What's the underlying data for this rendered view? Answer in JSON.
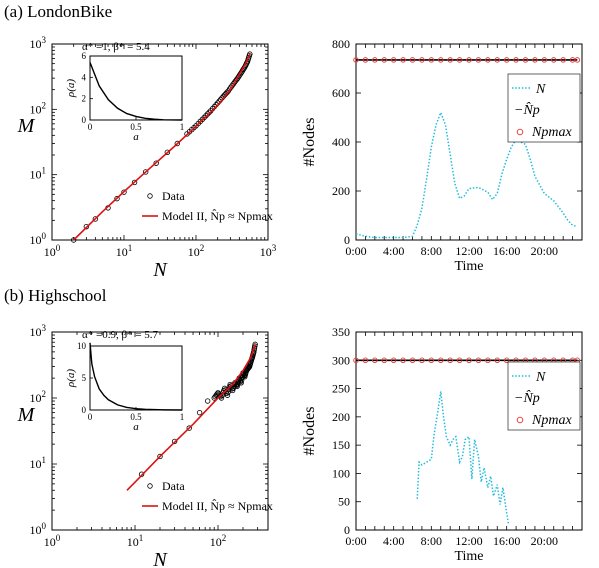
{
  "panels": [
    {
      "title": "(a) LondonBike",
      "scatter": {
        "ylabel": "M",
        "xlabel": "N",
        "x_ticks": [
          "10^0",
          "10^1",
          "10^2",
          "10^3"
        ],
        "y_ticks": [
          "10^0",
          "10^1",
          "10^2",
          "10^3"
        ],
        "annotation": "α* =1, β* = 5.4",
        "legend": [
          "Data",
          "Model II, N̂p ≈ Npmax"
        ]
      },
      "inset": {
        "xlabel": "a",
        "ylabel": "ρ(a)",
        "x_ticks": [
          "0",
          "0.5",
          "1"
        ],
        "y_ticks": [
          "0",
          "2",
          "4",
          "6"
        ]
      },
      "timeseries": {
        "ylabel": "#Nodes",
        "xlabel": "Time",
        "x_ticks": [
          "0:00",
          "4:00",
          "8:00",
          "12:00",
          "16:00",
          "20:00"
        ],
        "y_ticks": [
          "0",
          "200",
          "400",
          "600",
          "800"
        ],
        "legend": [
          "N",
          "−N̂p",
          "Npmax"
        ]
      }
    },
    {
      "title": "(b) Highschool",
      "scatter": {
        "ylabel": "M",
        "xlabel": "N",
        "x_ticks": [
          "10^0",
          "10^1",
          "10^2"
        ],
        "y_ticks": [
          "10^0",
          "10^1",
          "10^2",
          "10^3"
        ],
        "annotation": "α* =0.9, β* = 5.7",
        "legend": [
          "Data",
          "Model II, N̂p ≈ Npmax"
        ]
      },
      "inset": {
        "xlabel": "a",
        "ylabel": "ρ(a)",
        "x_ticks": [
          "0",
          "0.5",
          "1"
        ],
        "y_ticks": [
          "0",
          "5",
          "10"
        ]
      },
      "timeseries": {
        "ylabel": "#Nodes",
        "xlabel": "Time",
        "x_ticks": [
          "0:00",
          "4:00",
          "8:00",
          "12:00",
          "16:00",
          "20:00"
        ],
        "y_ticks": [
          "0",
          "50",
          "100",
          "150",
          "200",
          "250",
          "300",
          "350"
        ],
        "legend": [
          "N",
          "−N̂p",
          "Npmax"
        ]
      }
    }
  ],
  "colors": {
    "data": "#000000",
    "model": "#dd1111",
    "N_series": "#22bbdd",
    "Np_hat": "#000000",
    "Np_max": "#ee3333"
  },
  "chart_data": [
    {
      "type": "scatter",
      "panel": "a-left",
      "xscale": "log",
      "yscale": "log",
      "xlim": [
        1,
        1000
      ],
      "ylim": [
        1,
        1000
      ],
      "model": {
        "x": [
          2,
          5,
          10,
          20,
          50,
          100,
          200,
          300,
          400,
          500,
          560
        ],
        "y": [
          1,
          2.7,
          5.5,
          11,
          27,
          55,
          115,
          200,
          340,
          530,
          700
        ]
      },
      "data_points": {
        "x": [
          2,
          3,
          4,
          6,
          8,
          10,
          14,
          20,
          28,
          40,
          55,
          75,
          100,
          130,
          160,
          200,
          240,
          280,
          330,
          380,
          430,
          480,
          520,
          560
        ],
        "y": [
          1,
          1.6,
          2.1,
          3.1,
          4.3,
          5.4,
          7.6,
          11,
          15,
          22,
          30,
          42,
          56,
          75,
          95,
          125,
          158,
          190,
          245,
          300,
          370,
          450,
          540,
          700
        ]
      }
    },
    {
      "type": "line",
      "panel": "a-inset",
      "xlim": [
        0,
        1
      ],
      "ylim": [
        0,
        6
      ],
      "x": [
        0,
        0.1,
        0.2,
        0.3,
        0.4,
        0.5,
        0.6,
        0.7,
        0.8,
        0.9,
        1.0
      ],
      "y": [
        5.4,
        3.2,
        1.9,
        1.1,
        0.6,
        0.33,
        0.16,
        0.07,
        0.02,
        0.005,
        0
      ]
    },
    {
      "type": "line",
      "panel": "a-right",
      "xlim": [
        0,
        24
      ],
      "ylim": [
        0,
        800
      ],
      "series": [
        {
          "name": "N",
          "x": [
            0,
            0.5,
            1,
            2,
            3,
            4,
            5,
            6,
            6.5,
            7,
            7.5,
            8,
            8.5,
            9,
            9.5,
            10,
            10.5,
            11,
            11.5,
            12,
            13,
            14,
            14.5,
            15,
            15.5,
            16,
            16.5,
            17,
            17.5,
            18,
            18.5,
            19,
            19.5,
            20,
            21,
            22,
            22.5,
            23,
            23.5
          ],
          "y": [
            25,
            20,
            15,
            10,
            10,
            10,
            10,
            15,
            60,
            130,
            250,
            380,
            470,
            520,
            470,
            350,
            230,
            170,
            180,
            210,
            215,
            195,
            165,
            190,
            270,
            330,
            380,
            410,
            400,
            390,
            330,
            260,
            225,
            190,
            160,
            110,
            80,
            60,
            55
          ]
        },
        {
          "name": "−N̂p",
          "x": [
            0,
            23.5
          ],
          "y": [
            735,
            735
          ]
        },
        {
          "name": "Npmax",
          "x": [
            0,
            1,
            2,
            3,
            4,
            5,
            6,
            7,
            8,
            9,
            10,
            11,
            12,
            13,
            14,
            15,
            16,
            17,
            18,
            19,
            20,
            21,
            22,
            23,
            23.5
          ],
          "y": [
            735,
            735,
            735,
            735,
            735,
            735,
            735,
            735,
            735,
            735,
            735,
            735,
            735,
            735,
            735,
            735,
            735,
            735,
            735,
            735,
            735,
            735,
            735,
            735,
            735
          ]
        }
      ]
    },
    {
      "type": "scatter",
      "panel": "b-left",
      "xscale": "log",
      "yscale": "log",
      "xlim": [
        1,
        400
      ],
      "ylim": [
        1,
        1000
      ],
      "model": {
        "x": [
          8,
          10,
          20,
          50,
          100,
          150,
          200,
          250,
          280
        ],
        "y": [
          4,
          5.3,
          13,
          40,
          100,
          160,
          260,
          420,
          650
        ]
      },
      "data_points": {
        "x": [
          12,
          20,
          30,
          45,
          60,
          75,
          90,
          100,
          110,
          120,
          130,
          140,
          150,
          160,
          170,
          180,
          190,
          200,
          210,
          220,
          230,
          240,
          250,
          260,
          270,
          280
        ],
        "y": [
          7,
          13,
          22,
          35,
          60,
          90,
          100,
          120,
          100,
          140,
          110,
          160,
          130,
          170,
          150,
          200,
          170,
          240,
          210,
          260,
          280,
          300,
          360,
          420,
          500,
          650
        ]
      }
    },
    {
      "type": "line",
      "panel": "b-inset",
      "xlim": [
        0,
        1
      ],
      "ylim": [
        0,
        10
      ],
      "x": [
        0,
        0.02,
        0.05,
        0.1,
        0.15,
        0.2,
        0.3,
        0.4,
        0.5,
        0.6,
        0.8,
        1.0
      ],
      "y": [
        10.5,
        7.2,
        5.2,
        3.3,
        2.3,
        1.6,
        0.8,
        0.4,
        0.2,
        0.1,
        0.02,
        0
      ]
    },
    {
      "type": "line",
      "panel": "b-right",
      "xlim": [
        0,
        24
      ],
      "ylim": [
        0,
        350
      ],
      "series": [
        {
          "name": "N",
          "x": [
            6.5,
            6.7,
            7,
            7.5,
            8,
            8.3,
            8.6,
            9,
            9.3,
            9.6,
            10,
            10.3,
            10.6,
            11,
            11.3,
            11.6,
            12,
            12.3,
            12.6,
            13,
            13.3,
            13.6,
            14,
            14.3,
            14.6,
            15,
            15.3,
            15.6,
            16,
            16.2
          ],
          "y": [
            55,
            120,
            115,
            120,
            125,
            170,
            200,
            245,
            200,
            165,
            150,
            160,
            165,
            120,
            130,
            160,
            165,
            90,
            160,
            130,
            85,
            110,
            75,
            95,
            60,
            80,
            45,
            75,
            30,
            10
          ]
        },
        {
          "name": "−N̂p",
          "x": [
            0,
            23.5
          ],
          "y": [
            300,
            300
          ]
        },
        {
          "name": "Npmax",
          "x": [
            0,
            1,
            2,
            3,
            4,
            5,
            6,
            7,
            8,
            9,
            10,
            11,
            12,
            13,
            14,
            15,
            16,
            17,
            18,
            19,
            20,
            21,
            22,
            23,
            23.5
          ],
          "y": [
            300,
            300,
            300,
            300,
            300,
            300,
            300,
            300,
            300,
            300,
            300,
            300,
            300,
            300,
            300,
            300,
            300,
            300,
            300,
            300,
            300,
            300,
            300,
            300,
            300
          ]
        }
      ]
    }
  ]
}
